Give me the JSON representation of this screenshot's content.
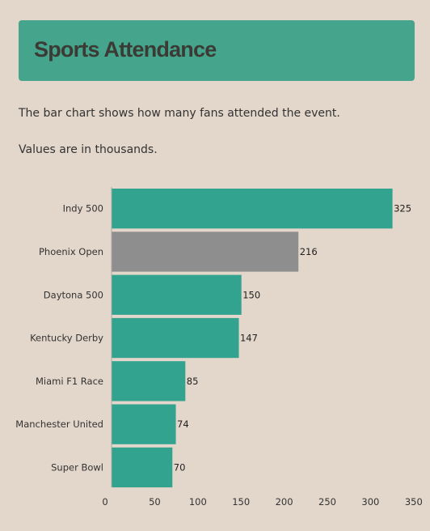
{
  "header": {
    "title": "Sports Attendance"
  },
  "description": {
    "line1": "The bar chart shows how many fans attended the event.",
    "line2": "Values are in thousands."
  },
  "colors": {
    "background": "#e3d6ca",
    "header": "#44a58c",
    "bar": "#31a38e",
    "bar_highlight": "#8e8e8e",
    "text": "#333333",
    "axis": "#aaaaaa"
  },
  "chart_data": {
    "type": "bar",
    "orientation": "horizontal",
    "categories": [
      "Indy 500",
      "Phoenix Open",
      "Daytona 500",
      "Kentucky Derby",
      "Miami F1 Race",
      "Manchester United",
      "Super Bowl"
    ],
    "values": [
      325,
      216,
      150,
      147,
      85,
      74,
      70
    ],
    "highlighted": [
      "Phoenix Open"
    ],
    "xlim": [
      0,
      350
    ],
    "xticks": [
      0,
      50,
      100,
      150,
      200,
      250,
      300,
      350
    ],
    "grid": false,
    "legend": "none"
  }
}
